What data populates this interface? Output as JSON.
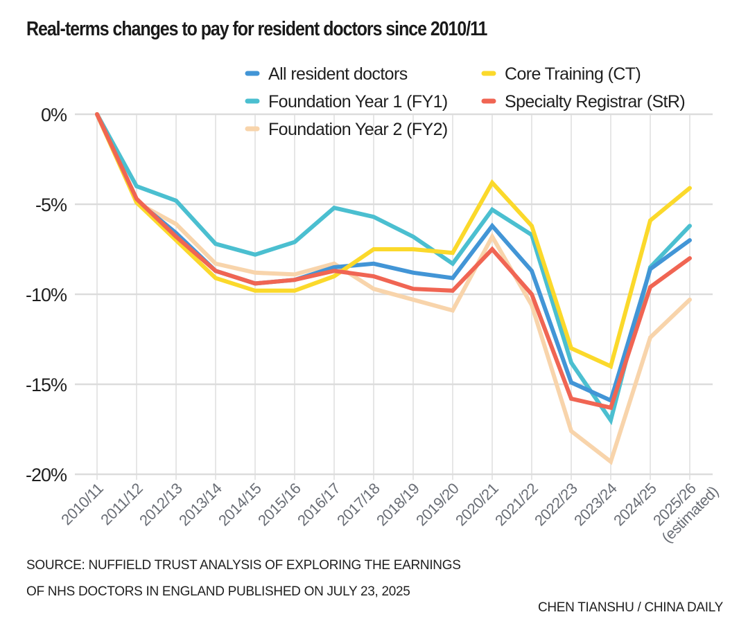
{
  "title": "Real-terms changes to pay for resident doctors since 2010/11",
  "footer": {
    "source_line1": "SOURCE: NUFFIELD TRUST ANALYSIS OF EXPLORING THE EARNINGS",
    "source_line2": "OF NHS DOCTORS IN ENGLAND PUBLISHED ON JULY 23, 2025",
    "credit": "CHEN TIANSHU / CHINA DAILY"
  },
  "chart_data": {
    "type": "line",
    "title": "Real-terms changes to pay for resident doctors since 2010/11",
    "xlabel": "",
    "ylabel": "",
    "ylim": [
      -20,
      0
    ],
    "yticks": [
      0,
      -5,
      -10,
      -15,
      -20
    ],
    "ytick_labels": [
      "0%",
      "-5%",
      "-10%",
      "-15%",
      "-20%"
    ],
    "grid": true,
    "legend_position": "top-right",
    "categories": [
      "2010/11",
      "2011/12",
      "2012/13",
      "2013/14",
      "2014/15",
      "2015/16",
      "2016/17",
      "2017/18",
      "2018/19",
      "2019/20",
      "2020/21",
      "2021/22",
      "2022/23",
      "2023/24",
      "2024/25",
      "2025/26"
    ],
    "category_labels": [
      [
        "2010/11"
      ],
      [
        "2011/12"
      ],
      [
        "2012/13"
      ],
      [
        "2013/14"
      ],
      [
        "2014/15"
      ],
      [
        "2015/16"
      ],
      [
        "2016/17"
      ],
      [
        "2017/18"
      ],
      [
        "2018/19"
      ],
      [
        "2019/20"
      ],
      [
        "2020/21"
      ],
      [
        "2021/22"
      ],
      [
        "2022/23"
      ],
      [
        "2023/24"
      ],
      [
        "2024/25"
      ],
      [
        "2025/26",
        "(estimated)"
      ]
    ],
    "series": [
      {
        "name": "Foundation Year 2 (FY2)",
        "color": "#f8d4ab",
        "values": [
          0,
          -4.9,
          -6.1,
          -8.3,
          -8.8,
          -8.9,
          -8.3,
          -9.7,
          -10.3,
          -10.9,
          -6.8,
          -10.6,
          -17.6,
          -19.3,
          -12.4,
          -10.3
        ]
      },
      {
        "name": "Foundation Year 1 (FY1)",
        "color": "#4bbfd0",
        "values": [
          0,
          -4.0,
          -4.8,
          -7.2,
          -7.8,
          -7.1,
          -5.2,
          -5.7,
          -6.8,
          -8.3,
          -5.3,
          -6.7,
          -13.8,
          -17.0,
          -8.5,
          -6.2
        ]
      },
      {
        "name": "All resident doctors",
        "color": "#4295d6",
        "values": [
          0,
          -4.8,
          -6.6,
          -8.7,
          -9.4,
          -9.2,
          -8.5,
          -8.3,
          -8.8,
          -9.1,
          -6.2,
          -8.7,
          -14.9,
          -15.9,
          -8.6,
          -7.0
        ]
      },
      {
        "name": "Core Training (CT)",
        "color": "#fbd92b",
        "values": [
          0,
          -4.9,
          -7.0,
          -9.1,
          -9.8,
          -9.8,
          -9.0,
          -7.5,
          -7.5,
          -7.7,
          -3.8,
          -6.2,
          -13.0,
          -14.0,
          -5.9,
          -4.1
        ]
      },
      {
        "name": "Specialty Registrar (StR)",
        "color": "#f06553",
        "values": [
          0,
          -4.7,
          -6.8,
          -8.7,
          -9.4,
          -9.2,
          -8.7,
          -9.0,
          -9.7,
          -9.8,
          -7.5,
          -10.0,
          -15.8,
          -16.3,
          -9.6,
          -8.0
        ]
      }
    ],
    "legend": [
      {
        "label": "All resident doctors",
        "color": "#4295d6"
      },
      {
        "label": "Foundation Year 1 (FY1)",
        "color": "#4bbfd0"
      },
      {
        "label": "Foundation Year 2 (FY2)",
        "color": "#f8d4ab"
      },
      {
        "label": "Core Training (CT)",
        "color": "#fbd92b"
      },
      {
        "label": "Specialty Registrar (StR)",
        "color": "#f06553"
      }
    ]
  }
}
